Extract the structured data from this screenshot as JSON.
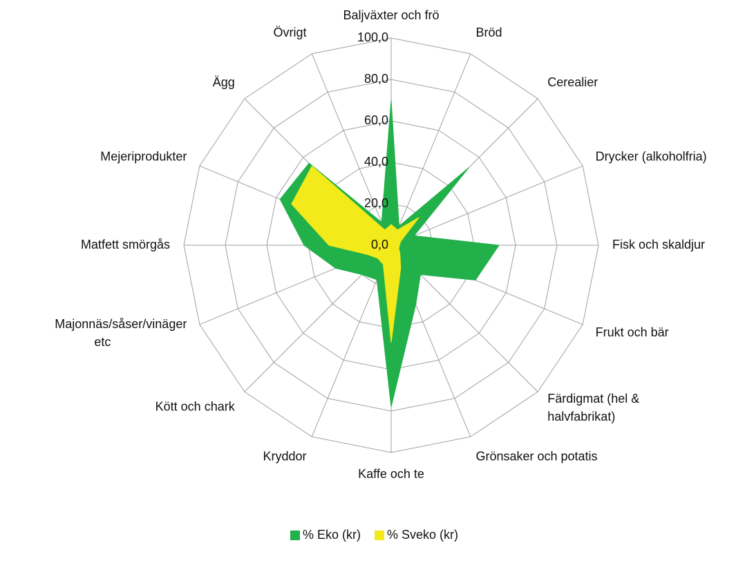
{
  "chart_data": {
    "type": "radar",
    "categories": [
      "Baljväxter och frö",
      "Bröd",
      "Cerealier",
      "Drycker (alkoholfria)",
      "Fisk och skaldjur",
      "Frukt och bär",
      "Färdigmat (hel & halvfabrikat)",
      "Grönsaker och potatis",
      "Kaffe och te",
      "Kryddor",
      "Kött och chark",
      "Majonnäs/såser/vinäger etc",
      "Matfett smörgås",
      "Mejeriprodukter",
      "Ägg",
      "Övrigt"
    ],
    "series": [
      {
        "name": "% Eko (kr)",
        "color": "#22b04b",
        "values": [
          70,
          10,
          53,
          12,
          52,
          44,
          20,
          31,
          78,
          18,
          20,
          29,
          42,
          58,
          56,
          12
        ]
      },
      {
        "name": "% Sveko (kr)",
        "color": "#f2ea1a",
        "values": [
          10,
          8,
          19,
          5,
          4,
          4,
          6,
          12,
          47,
          10,
          9,
          12,
          30,
          52,
          54,
          8
        ]
      }
    ],
    "ylim": [
      0,
      100
    ],
    "yticks": [
      {
        "value": 0,
        "label": "0,0"
      },
      {
        "value": 20,
        "label": "20,0"
      },
      {
        "value": 40,
        "label": "40,0"
      },
      {
        "value": 60,
        "label": "60,0"
      },
      {
        "value": 80,
        "label": "80,0"
      },
      {
        "value": 100,
        "label": "100,0"
      }
    ],
    "grid": true,
    "legend": "bottom"
  }
}
